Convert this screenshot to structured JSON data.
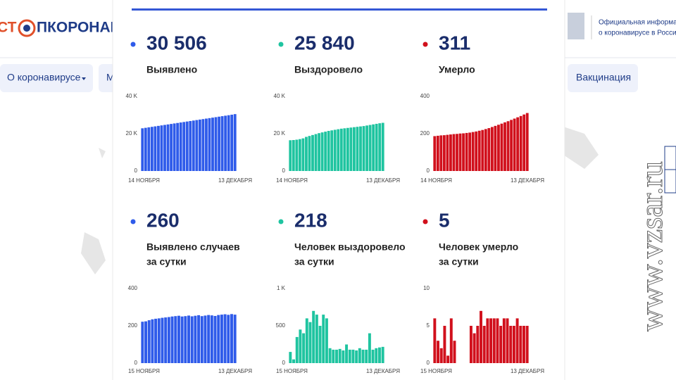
{
  "header": {
    "logo_left": "СТ",
    "logo_right": "ПКОРОНАВИ",
    "info_1": "Официальная информа",
    "info_2": "о коронавирусе в Росси"
  },
  "nav": [
    "О коронавирусе",
    "М",
    "Вакцинация"
  ],
  "watermark": "www.vzsar.ru",
  "chart_data": [
    {
      "type": "bar",
      "headline": "30 506",
      "title": "Выявлено",
      "color": "#2f5bea",
      "ylim": [
        0,
        40000
      ],
      "yticks": [
        0,
        {
          "value": 20000,
          "label": "20 K"
        },
        {
          "value": 40000,
          "label": "40 K"
        }
      ],
      "categories": [
        "14 НОЯБРЯ",
        null,
        null,
        null,
        null,
        null,
        null,
        null,
        null,
        null,
        null,
        null,
        null,
        null,
        null,
        null,
        null,
        null,
        null,
        null,
        null,
        null,
        null,
        null,
        null,
        null,
        null,
        null,
        null,
        "13 ДЕКАБРЯ"
      ],
      "values": [
        22900,
        23160,
        23420,
        23680,
        23940,
        24200,
        24460,
        24720,
        24980,
        25240,
        25500,
        25760,
        26020,
        26280,
        26540,
        26800,
        27060,
        27320,
        27580,
        27840,
        28100,
        28360,
        28620,
        28880,
        29140,
        29400,
        29660,
        29920,
        30200,
        30506
      ]
    },
    {
      "type": "bar",
      "headline": "25 840",
      "title": "Выздоровело",
      "color": "#1fc4a0",
      "ylim": [
        0,
        40000
      ],
      "yticks": [
        0,
        {
          "value": 20000,
          "label": "20 K"
        },
        {
          "value": 40000,
          "label": "40 K"
        }
      ],
      "categories": [
        "14 НОЯБРЯ",
        null,
        null,
        null,
        null,
        null,
        null,
        null,
        null,
        null,
        null,
        null,
        null,
        null,
        null,
        null,
        null,
        null,
        null,
        null,
        null,
        null,
        null,
        null,
        null,
        null,
        null,
        null,
        null,
        "13 ДЕКАБРЯ"
      ],
      "values": [
        16500,
        16600,
        16800,
        17100,
        17500,
        18300,
        18800,
        19300,
        19800,
        20300,
        20700,
        21100,
        21500,
        21800,
        22100,
        22400,
        22700,
        22900,
        23100,
        23300,
        23500,
        23700,
        23900,
        24100,
        24400,
        24700,
        25000,
        25300,
        25600,
        25840
      ]
    },
    {
      "type": "bar",
      "headline": "311",
      "title": "Умерло",
      "color": "#d1101c",
      "ylim": [
        0,
        400
      ],
      "yticks": [
        0,
        200,
        400
      ],
      "categories": [
        "14 НОЯБРЯ",
        null,
        null,
        null,
        null,
        null,
        null,
        null,
        null,
        null,
        null,
        null,
        null,
        null,
        null,
        null,
        null,
        null,
        null,
        null,
        null,
        null,
        null,
        null,
        null,
        null,
        null,
        null,
        null,
        "13 ДЕКАБРЯ"
      ],
      "values": [
        187,
        189,
        191,
        192,
        194,
        196,
        198,
        199,
        201,
        202,
        204,
        206,
        209,
        212,
        216,
        220,
        225,
        230,
        236,
        242,
        248,
        254,
        261,
        267,
        274,
        281,
        288,
        295,
        303,
        311
      ]
    },
    {
      "type": "bar",
      "headline": "260",
      "title": "Выявлено случаев",
      "subtitle": "за сутки",
      "color": "#2f5bea",
      "ylim": [
        0,
        400
      ],
      "yticks": [
        0,
        200,
        400
      ],
      "categories": [
        "15 НОЯБРЯ",
        null,
        null,
        null,
        null,
        null,
        null,
        null,
        null,
        null,
        null,
        null,
        null,
        null,
        null,
        null,
        null,
        null,
        null,
        null,
        null,
        null,
        null,
        null,
        null,
        null,
        null,
        null,
        "13 ДЕКАБРЯ"
      ],
      "values": [
        222,
        224,
        230,
        235,
        238,
        240,
        243,
        245,
        247,
        250,
        252,
        254,
        250,
        252,
        255,
        251,
        254,
        257,
        252,
        255,
        258,
        256,
        253,
        258,
        260,
        262,
        259,
        263,
        260
      ]
    },
    {
      "type": "bar",
      "headline": "218",
      "title": "Человек выздоровело",
      "subtitle": "за сутки",
      "color": "#1fc4a0",
      "ylim": [
        0,
        1000
      ],
      "yticks": [
        0,
        500,
        {
          "value": 1000,
          "label": "1 K"
        }
      ],
      "categories": [
        "15 НОЯБРЯ",
        null,
        null,
        null,
        null,
        null,
        null,
        null,
        null,
        null,
        null,
        null,
        null,
        null,
        null,
        null,
        null,
        null,
        null,
        null,
        null,
        null,
        null,
        null,
        null,
        null,
        null,
        null,
        "13 ДЕКАБРЯ"
      ],
      "values": [
        150,
        50,
        350,
        450,
        400,
        600,
        550,
        700,
        650,
        500,
        650,
        600,
        200,
        180,
        180,
        190,
        170,
        250,
        180,
        180,
        170,
        200,
        180,
        180,
        400,
        180,
        200,
        210,
        218
      ]
    },
    {
      "type": "bar",
      "headline": "5",
      "title": "Человек умерло",
      "subtitle": "за сутки",
      "color": "#d1101c",
      "ylim": [
        0,
        10
      ],
      "yticks": [
        0,
        5,
        10
      ],
      "categories": [
        "15 НОЯБРЯ",
        null,
        null,
        null,
        null,
        null,
        null,
        null,
        null,
        null,
        null,
        null,
        null,
        null,
        null,
        null,
        null,
        null,
        null,
        null,
        null,
        null,
        null,
        null,
        null,
        null,
        null,
        null,
        "13 ДЕКАБРЯ"
      ],
      "values": [
        6,
        3,
        2,
        5,
        1,
        6,
        3,
        0,
        0,
        0,
        0,
        5,
        4,
        5,
        7,
        5,
        6,
        6,
        6,
        6,
        5,
        6,
        6,
        5,
        5,
        6,
        5,
        5,
        5
      ]
    }
  ]
}
